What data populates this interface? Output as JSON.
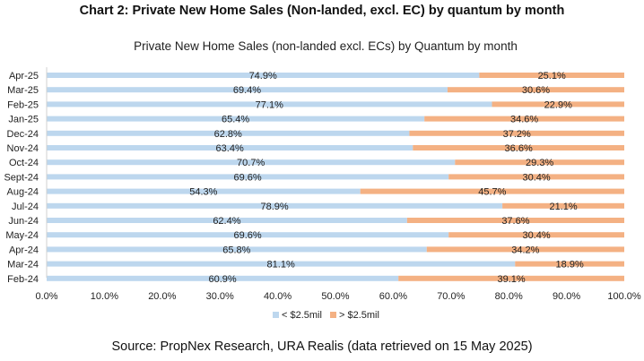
{
  "page": {
    "heading": "Chart 2: Private New Home Sales (Non-landed, excl. EC) by quantum by month",
    "source": "Source: PropNex Research, URA Realis (data retrieved on 15 May 2025)"
  },
  "chart_data": {
    "type": "bar",
    "orientation": "horizontal",
    "stacked": true,
    "title": "Private New Home Sales (non-landed excl. ECs) by Quantum by month",
    "xlabel": "",
    "ylabel": "",
    "xlim": [
      0,
      100
    ],
    "x_ticks": [
      "0.0%",
      "10.0%",
      "20.0%",
      "30.0%",
      "40.0%",
      "50.0%",
      "60.0%",
      "70.0%",
      "80.0%",
      "90.0%",
      "100.0%"
    ],
    "categories": [
      "Apr-25",
      "Mar-25",
      "Feb-25",
      "Jan-25",
      "Dec-24",
      "Nov-24",
      "Oct-24",
      "Sept-24",
      "Aug-24",
      "Jul-24",
      "Jun-24",
      "May-24",
      "Apr-24",
      "Mar-24",
      "Feb-24"
    ],
    "series": [
      {
        "name": "< $2.5mil",
        "color": "#bdd7ee",
        "values": [
          74.9,
          69.4,
          77.1,
          65.4,
          62.8,
          63.4,
          70.7,
          69.6,
          54.3,
          78.9,
          62.4,
          69.6,
          65.8,
          81.1,
          60.9
        ],
        "labels": [
          "74.9%",
          "69.4%",
          "77.1%",
          "65.4%",
          "62.8%",
          "63.4%",
          "70.7%",
          "69.6%",
          "54.3%",
          "78.9%",
          "62.4%",
          "69.6%",
          "65.8%",
          "81.1%",
          "60.9%"
        ]
      },
      {
        "name": "> $2.5mil",
        "color": "#f4b183",
        "values": [
          25.1,
          30.6,
          22.9,
          34.6,
          37.2,
          36.6,
          29.3,
          30.4,
          45.7,
          21.1,
          37.6,
          30.4,
          34.2,
          18.9,
          39.1
        ],
        "labels": [
          "25.1%",
          "30.6%",
          "22.9%",
          "34.6%",
          "37.2%",
          "36.6%",
          "29.3%",
          "30.4%",
          "45.7%",
          "21.1%",
          "37.6%",
          "30.4%",
          "34.2%",
          "18.9%",
          "39.1%"
        ]
      }
    ],
    "legend_position": "bottom",
    "grid": false
  }
}
